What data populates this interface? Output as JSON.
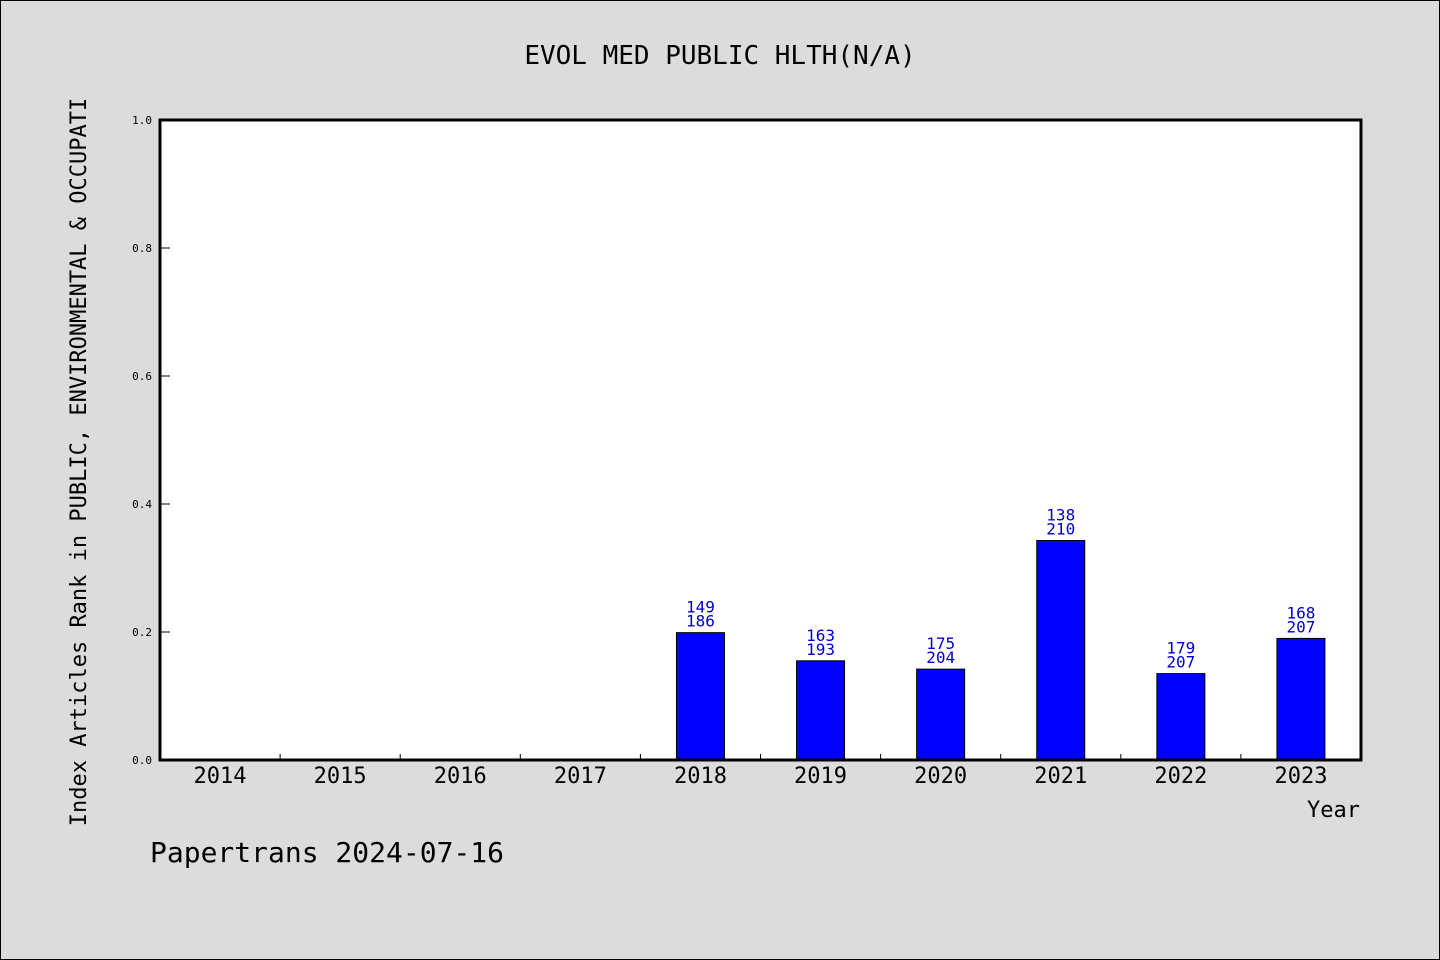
{
  "chart_data": {
    "type": "bar",
    "title": "EVOL MED PUBLIC HLTH(N/A)",
    "xlabel": "Year",
    "ylabel": "Index Articles Rank in PUBLIC, ENVIRONMENTAL & OCCUPATI",
    "footer": "Papertrans 2024-07-16",
    "categories": [
      "2014",
      "2015",
      "2016",
      "2017",
      "2018",
      "2019",
      "2020",
      "2021",
      "2022",
      "2023"
    ],
    "values": [
      0,
      0,
      0,
      0,
      0.199,
      0.155,
      0.142,
      0.343,
      0.135,
      0.19
    ],
    "bar_labels": [
      null,
      null,
      null,
      null,
      [
        "149",
        "186"
      ],
      [
        "163",
        "193"
      ],
      [
        "175",
        "204"
      ],
      [
        "138",
        "210"
      ],
      [
        "179",
        "207"
      ],
      [
        "168",
        "207"
      ]
    ],
    "ylim": [
      0,
      1.0
    ],
    "yticks": [
      "0.0",
      "0.2",
      "0.4",
      "0.6",
      "0.8",
      "1.0"
    ],
    "grid": false,
    "colors": {
      "bar": "#0000ff",
      "bar_label": "#0000cc",
      "background": "#dcdcdc",
      "plot_bg": "#ffffff"
    }
  }
}
